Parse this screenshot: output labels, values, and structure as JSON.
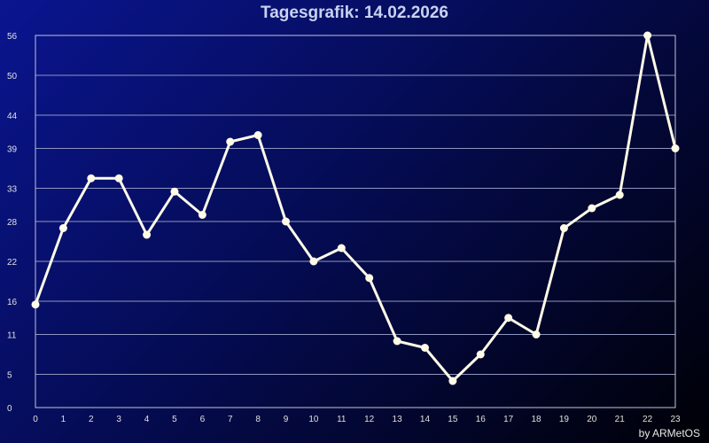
{
  "chart_data": {
    "type": "line",
    "title": "Tagesgrafik: 14.02.2026",
    "xlabel": "",
    "ylabel": "",
    "x": [
      0,
      1,
      2,
      3,
      4,
      5,
      6,
      7,
      8,
      9,
      10,
      11,
      12,
      13,
      14,
      15,
      16,
      17,
      18,
      19,
      20,
      21,
      22,
      23
    ],
    "series": [
      {
        "values": [
          15.5,
          27,
          34.5,
          34.5,
          26,
          32.5,
          29,
          40,
          41,
          28,
          22,
          24,
          19.5,
          10,
          9,
          4,
          8,
          13.5,
          11,
          27,
          30,
          32,
          56,
          39
        ]
      }
    ],
    "yticks": [
      0,
      5,
      11,
      16,
      22,
      28,
      33,
      39,
      44,
      50,
      56
    ],
    "ylim": [
      0,
      56
    ],
    "xlim": [
      0,
      23
    ],
    "grid": true,
    "legend": "none",
    "colors": {
      "line": "#fffbe6",
      "grid": "#8f96bf",
      "axis_text": "#e0e0e0"
    }
  },
  "footer": {
    "credit": "by ARMetOS"
  }
}
